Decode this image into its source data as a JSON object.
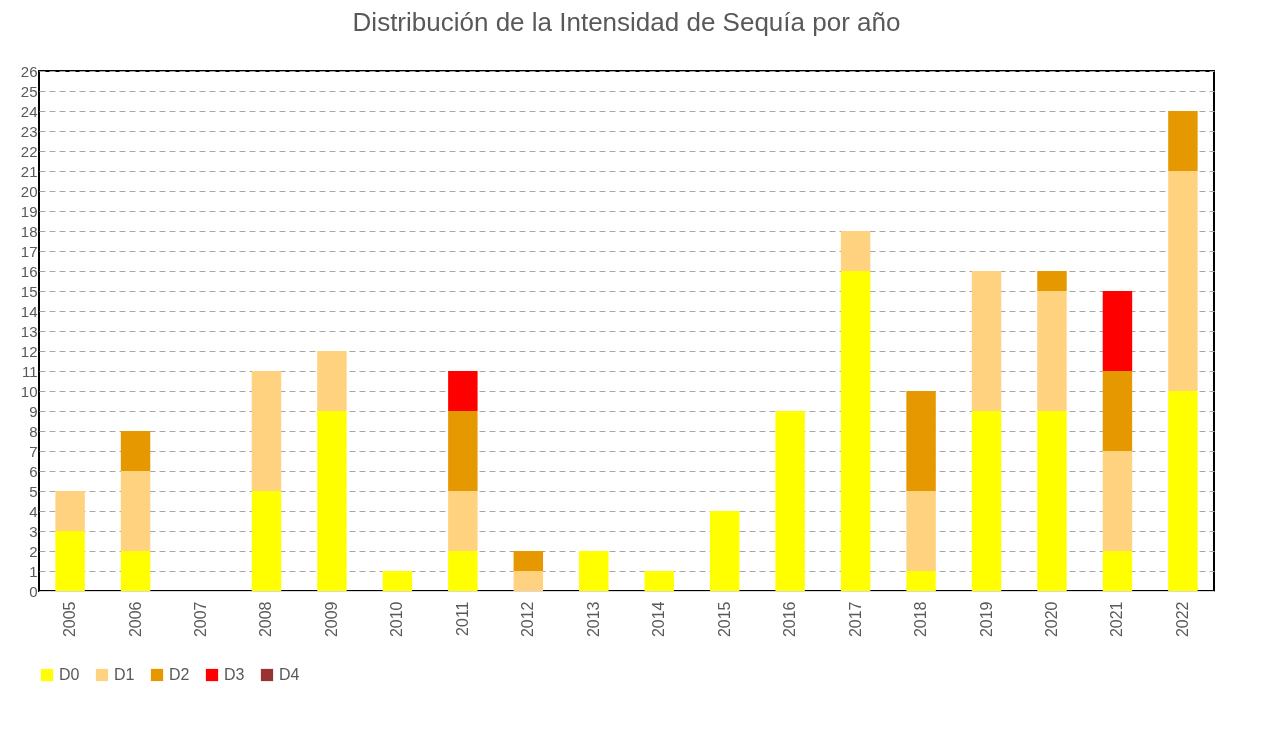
{
  "chart_data": {
    "type": "bar",
    "title": "Distribución de la Intensidad de Sequía por año",
    "categories": [
      "2005",
      "2006",
      "2007",
      "2008",
      "2009",
      "2010",
      "2011",
      "2012",
      "2013",
      "2014",
      "2015",
      "2016",
      "2017",
      "2018",
      "2019",
      "2020",
      "2021",
      "2022"
    ],
    "stacked": true,
    "series": [
      {
        "name": "D0",
        "color": "#ffff00",
        "values": [
          3,
          2,
          0,
          5,
          9,
          1,
          2,
          0,
          2,
          1,
          4,
          9,
          16,
          1,
          9,
          9,
          2,
          10
        ]
      },
      {
        "name": "D1",
        "color": "#ffd280",
        "values": [
          2,
          4,
          0,
          6,
          3,
          0,
          3,
          1,
          0,
          0,
          0,
          0,
          2,
          4,
          7,
          6,
          5,
          11
        ]
      },
      {
        "name": "D2",
        "color": "#e59800",
        "values": [
          0,
          2,
          0,
          0,
          0,
          0,
          4,
          1,
          0,
          0,
          0,
          0,
          0,
          5,
          0,
          1,
          4,
          3
        ]
      },
      {
        "name": "D3",
        "color": "#ff0000",
        "values": [
          0,
          0,
          0,
          0,
          0,
          0,
          2,
          0,
          0,
          0,
          0,
          0,
          0,
          0,
          0,
          0,
          4,
          0
        ]
      },
      {
        "name": "D4",
        "color": "#993333",
        "values": [
          0,
          0,
          0,
          0,
          0,
          0,
          0,
          0,
          0,
          0,
          0,
          0,
          0,
          0,
          0,
          0,
          0,
          0
        ]
      }
    ],
    "ylim": [
      0,
      26
    ],
    "yticks": [
      0,
      1,
      2,
      3,
      4,
      5,
      6,
      7,
      8,
      9,
      10,
      11,
      12,
      13,
      14,
      15,
      16,
      17,
      18,
      19,
      20,
      21,
      22,
      23,
      24,
      25,
      26
    ],
    "grid": "y",
    "legend": "bottom"
  }
}
